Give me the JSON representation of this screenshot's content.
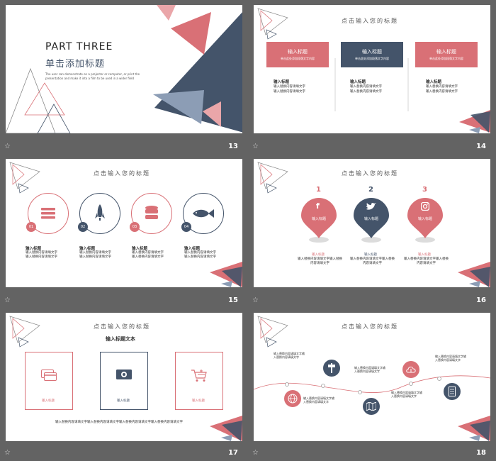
{
  "colors": {
    "pink": "#d97076",
    "navy": "#44546a",
    "lightnavy": "#8c9db5",
    "lightpink": "#eaa6a9"
  },
  "slides": {
    "s13": {
      "number": "13",
      "heading": "PART THREE",
      "subheading": "单击添加标题",
      "desc1": "The user can demonstrate on a projector or computer, or print the",
      "desc2": "presentation and make it into a film to be used in a wider field"
    },
    "s14": {
      "number": "14",
      "title": "点击输入您的标题",
      "boxes": [
        {
          "label": "输入标题",
          "sub": "单击此处添加段落文字内容"
        },
        {
          "label": "输入标题",
          "sub": "单击此处添加段落文字内容"
        },
        {
          "label": "输入标题",
          "sub": "单击此处添加段落文字内容"
        }
      ],
      "items": [
        {
          "head": "输入标题",
          "l1": "输入替换内容请填文字",
          "l2": "输入替换内容请填文字"
        },
        {
          "head": "输入标题",
          "l1": "输入替换内容请填文字",
          "l2": "输入替换内容请填文字"
        },
        {
          "head": "输入标题",
          "l1": "输入替换内容请填文字",
          "l2": "输入替换内容请填文字"
        }
      ]
    },
    "s15": {
      "number": "15",
      "title": "点击输入您的标题",
      "items": [
        {
          "num": "01",
          "head": "输入标题",
          "l1": "输入替换内容请填文字",
          "l2": "输入替换内容请填文字",
          "icon": "menu-icon"
        },
        {
          "num": "02",
          "head": "输入标题",
          "l1": "输入替换内容请填文字",
          "l2": "输入替换内容请填文字",
          "icon": "rocket-icon"
        },
        {
          "num": "03",
          "head": "输入标题",
          "l1": "输入替换内容请填文字",
          "l2": "输入替换内容请填文字",
          "icon": "database-icon"
        },
        {
          "num": "04",
          "head": "输入标题",
          "l1": "输入替换内容请填文字",
          "l2": "输入替换内容请填文字",
          "icon": "fish-icon"
        }
      ]
    },
    "s16": {
      "number": "16",
      "title": "点击输入您的标题",
      "pins": [
        {
          "num": "1",
          "label": "输入标题",
          "icon": "facebook-icon",
          "cap": "输入标题",
          "t1": "输入替换内容请填文字输入替换",
          "t2": "内容请填文字"
        },
        {
          "num": "2",
          "label": "输入标题",
          "icon": "twitter-icon",
          "cap": "输入标题",
          "t1": "输入替换内容请填文字输入替换",
          "t2": "内容请填文字"
        },
        {
          "num": "3",
          "label": "输入标题",
          "icon": "instagram-icon",
          "cap": "输入标题",
          "t1": "输入替换内容请填文字输入替换",
          "t2": "内容请填文字"
        }
      ]
    },
    "s17": {
      "number": "17",
      "title": "点击输入您的标题",
      "subtitle": "输入标题文本",
      "cards": [
        {
          "label": "输入标题",
          "icon": "credit-card-icon"
        },
        {
          "label": "输入标题",
          "icon": "money-icon"
        },
        {
          "label": "输入标题",
          "icon": "cart-icon"
        }
      ],
      "footer": "输入替换内容请填文字输入替换内容请填文字输入替换内容请填文字输入替换内容请填文字"
    },
    "s18": {
      "number": "18",
      "title": "点击输入您的标题",
      "notes": [
        {
          "l1": "输入替换内容请填文字输",
          "l2": "入替换内容请填文字"
        },
        {
          "l1": "输入替换内容请填文字输",
          "l2": "入替换内容请填文字"
        },
        {
          "l1": "输入替换内容请填文字输",
          "l2": "入替换内容请填文字"
        },
        {
          "l1": "输入替换内容请填文字输",
          "l2": "入替换内容请填文字"
        },
        {
          "l1": "输入替换内容请填文字输",
          "l2": "入替换内容请填文字"
        },
        {
          "l1": "输入替换内容请填文字输",
          "l2": "入替换内容请填文字"
        }
      ]
    }
  }
}
